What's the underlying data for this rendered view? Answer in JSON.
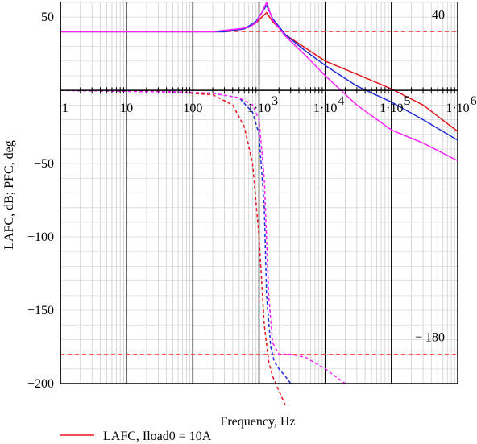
{
  "chart_data": {
    "type": "line",
    "xlabel": "Frequency, Hz",
    "ylabel": "LAFC, dB; PFC, deg",
    "x_scale": "log",
    "xlim": [
      1,
      1000000
    ],
    "ylim": [
      -200,
      60
    ],
    "grid": true,
    "y_ticks": [
      "50",
      "-50",
      "-100",
      "-150",
      "-200"
    ],
    "x_ticks": [
      {
        "base": "1",
        "exp": ""
      },
      {
        "base": "10",
        "exp": ""
      },
      {
        "base": "100",
        "exp": ""
      },
      {
        "base": "1·10",
        "exp": "3"
      },
      {
        "base": "1·10",
        "exp": "4"
      },
      {
        "base": "1·10",
        "exp": "5"
      },
      {
        "base": "1·10",
        "exp": "6"
      }
    ],
    "markers": [
      {
        "label": "40",
        "y": 40,
        "color": "#ff4040"
      },
      {
        "label": "− 180",
        "y": -180,
        "color": "#ff4040"
      }
    ],
    "legend": [
      {
        "label": "LAFC, Iload0 = 10A",
        "color": "#e8141c"
      }
    ],
    "series": [
      {
        "color": "#e8141c",
        "dash": false,
        "x": [
          1,
          100,
          300,
          600,
          900,
          1100,
          1300,
          1600,
          2500,
          5000,
          10000,
          30000,
          100000,
          300000,
          1000000
        ],
        "y": [
          40,
          40,
          40,
          42,
          46,
          50,
          53,
          47,
          38,
          29,
          20,
          11,
          1,
          -10,
          -28
        ]
      },
      {
        "color": "#1f2be0",
        "dash": false,
        "x": [
          1,
          100,
          300,
          600,
          900,
          1100,
          1300,
          1600,
          2500,
          5000,
          10000,
          30000,
          100000,
          300000,
          1000000
        ],
        "y": [
          40,
          40,
          40,
          42,
          47,
          53,
          58,
          49,
          38,
          27,
          17,
          3,
          -8,
          -20,
          -34
        ]
      },
      {
        "color": "#ff1fff",
        "dash": false,
        "x": [
          1,
          100,
          200,
          300,
          500,
          700,
          900,
          1100,
          1300,
          1600,
          2500,
          5000,
          10000,
          30000,
          100000,
          300000,
          1000000
        ],
        "y": [
          40,
          40,
          40,
          41,
          42,
          43,
          46,
          53,
          60,
          48,
          37,
          24,
          10,
          -10,
          -27,
          -36,
          -48
        ]
      },
      {
        "color": "#e8141c",
        "dash": true,
        "x": [
          1,
          50,
          200,
          400,
          600,
          800,
          1000,
          1200,
          1400,
          1600,
          2000,
          2500
        ],
        "y": [
          0,
          -1,
          -3,
          -10,
          -25,
          -50,
          -100,
          -160,
          -185,
          -195,
          -205,
          -215
        ]
      },
      {
        "color": "#1f2be0",
        "dash": true,
        "x": [
          1,
          50,
          200,
          500,
          800,
          1000,
          1200,
          1300,
          1500,
          1700,
          2000,
          2500,
          3000
        ],
        "y": [
          0,
          -1,
          -2,
          -5,
          -15,
          -30,
          -80,
          -140,
          -175,
          -185,
          -190,
          -195,
          -200
        ]
      },
      {
        "color": "#ff1fff",
        "dash": true,
        "x": [
          1,
          50,
          200,
          500,
          800,
          1000,
          1200,
          1400,
          1600,
          2000,
          3000,
          5000,
          10000,
          20000
        ],
        "y": [
          0,
          -1,
          -2,
          -5,
          -10,
          -20,
          -60,
          -140,
          -172,
          -180,
          -180,
          -182,
          -190,
          -200
        ]
      }
    ]
  }
}
